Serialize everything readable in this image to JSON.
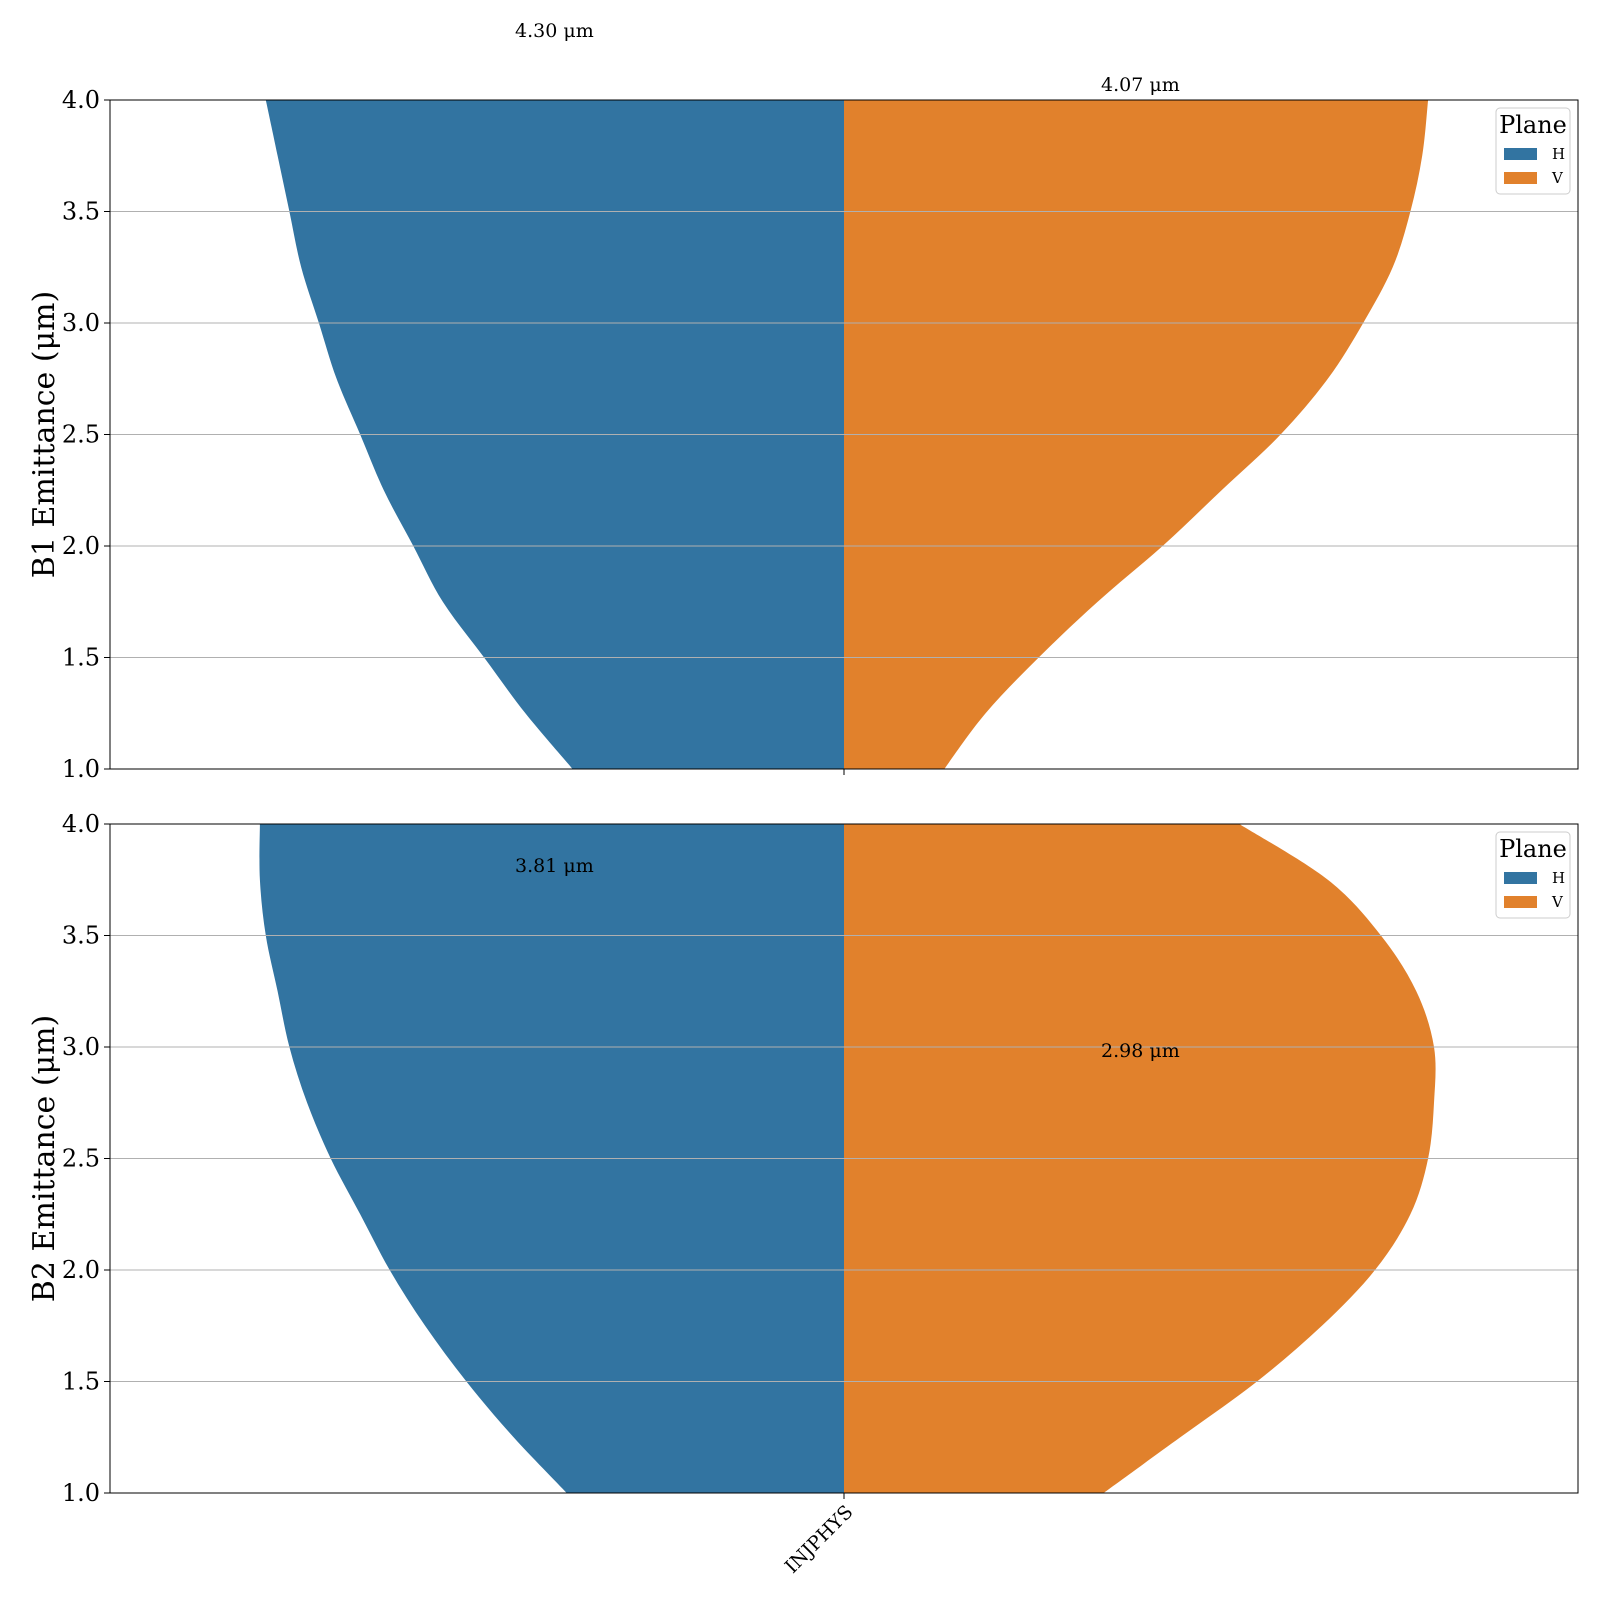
{
  "chart_data": [
    {
      "type": "violin",
      "split": true,
      "ylabel": "B1 Emittance (μm)",
      "ylim": [
        1.0,
        4.0
      ],
      "yticks": [
        "1.0",
        "1.5",
        "2.0",
        "2.5",
        "3.0",
        "3.5",
        "4.0"
      ],
      "categories": [
        "INJPHYS"
      ],
      "grid": true,
      "legend": {
        "title": "Plane",
        "placement": "top-right"
      },
      "series": [
        {
          "name": "H",
          "color": "#3274a1",
          "annotation": "4.30 μm",
          "annotation_value": 4.3,
          "density_profile": [
            {
              "y": 1.0,
              "w": 0.46
            },
            {
              "y": 1.25,
              "w": 0.54
            },
            {
              "y": 1.5,
              "w": 0.61
            },
            {
              "y": 1.75,
              "w": 0.68
            },
            {
              "y": 2.0,
              "w": 0.73
            },
            {
              "y": 2.25,
              "w": 0.78
            },
            {
              "y": 2.5,
              "w": 0.82
            },
            {
              "y": 2.75,
              "w": 0.86
            },
            {
              "y": 3.0,
              "w": 0.89
            },
            {
              "y": 3.25,
              "w": 0.92
            },
            {
              "y": 3.5,
              "w": 0.94
            },
            {
              "y": 3.75,
              "w": 0.96
            },
            {
              "y": 4.0,
              "w": 0.98
            }
          ]
        },
        {
          "name": "V",
          "color": "#e1812c",
          "annotation": "4.07 μm",
          "annotation_value": 4.07,
          "density_profile": [
            {
              "y": 1.0,
              "w": 0.17
            },
            {
              "y": 1.25,
              "w": 0.24
            },
            {
              "y": 1.5,
              "w": 0.33
            },
            {
              "y": 1.75,
              "w": 0.43
            },
            {
              "y": 2.0,
              "w": 0.54
            },
            {
              "y": 2.25,
              "w": 0.64
            },
            {
              "y": 2.5,
              "w": 0.74
            },
            {
              "y": 2.75,
              "w": 0.82
            },
            {
              "y": 3.0,
              "w": 0.88
            },
            {
              "y": 3.25,
              "w": 0.93
            },
            {
              "y": 3.5,
              "w": 0.96
            },
            {
              "y": 3.75,
              "w": 0.98
            },
            {
              "y": 4.0,
              "w": 0.99
            }
          ]
        }
      ]
    },
    {
      "type": "violin",
      "split": true,
      "ylabel": "B2 Emittance (μm)",
      "ylim": [
        1.0,
        4.0
      ],
      "yticks": [
        "1.0",
        "1.5",
        "2.0",
        "2.5",
        "3.0",
        "3.5",
        "4.0"
      ],
      "categories": [
        "INJPHYS"
      ],
      "grid": true,
      "legend": {
        "title": "Plane",
        "placement": "top-right"
      },
      "series": [
        {
          "name": "H",
          "color": "#3274a1",
          "annotation": "3.81 μm",
          "annotation_value": 3.81,
          "density_profile": [
            {
              "y": 1.0,
              "w": 0.47
            },
            {
              "y": 1.25,
              "w": 0.56
            },
            {
              "y": 1.5,
              "w": 0.64
            },
            {
              "y": 1.75,
              "w": 0.71
            },
            {
              "y": 2.0,
              "w": 0.77
            },
            {
              "y": 2.25,
              "w": 0.82
            },
            {
              "y": 2.5,
              "w": 0.87
            },
            {
              "y": 2.75,
              "w": 0.91
            },
            {
              "y": 3.0,
              "w": 0.94
            },
            {
              "y": 3.25,
              "w": 0.96
            },
            {
              "y": 3.5,
              "w": 0.98
            },
            {
              "y": 3.75,
              "w": 0.99
            },
            {
              "y": 4.0,
              "w": 0.99
            }
          ]
        },
        {
          "name": "V",
          "color": "#e1812c",
          "annotation": "2.98 μm",
          "annotation_value": 2.98,
          "density_profile": [
            {
              "y": 1.0,
              "w": 0.44
            },
            {
              "y": 1.25,
              "w": 0.57
            },
            {
              "y": 1.5,
              "w": 0.7
            },
            {
              "y": 1.75,
              "w": 0.81
            },
            {
              "y": 2.0,
              "w": 0.9
            },
            {
              "y": 2.25,
              "w": 0.96
            },
            {
              "y": 2.5,
              "w": 0.99
            },
            {
              "y": 2.75,
              "w": 1.0
            },
            {
              "y": 3.0,
              "w": 1.0
            },
            {
              "y": 3.25,
              "w": 0.97
            },
            {
              "y": 3.5,
              "w": 0.91
            },
            {
              "y": 3.75,
              "w": 0.82
            },
            {
              "y": 4.0,
              "w": 0.67
            }
          ]
        }
      ]
    }
  ]
}
